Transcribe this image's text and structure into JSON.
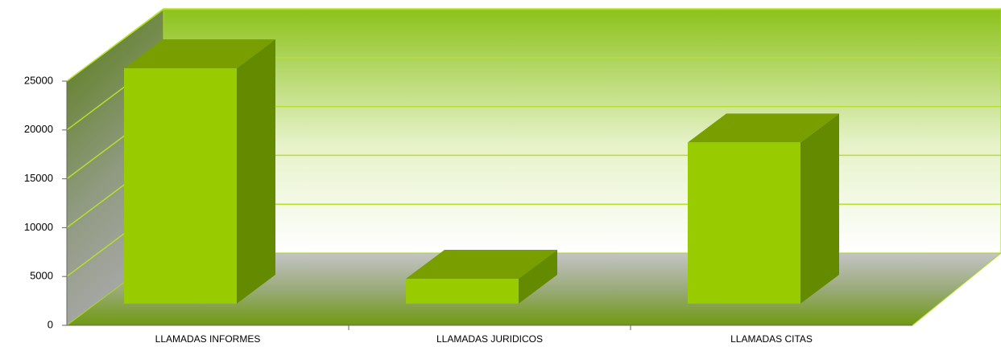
{
  "chart_data": {
    "type": "bar3d",
    "categories": [
      "LLAMADAS INFORMES",
      "LLAMADAS JURIDICOS",
      "LLAMADAS CITAS"
    ],
    "values": [
      24100,
      2550,
      16500
    ],
    "color": "#99cc00",
    "ylim": [
      0,
      25000
    ],
    "yticks": [
      0,
      5000,
      10000,
      15000,
      20000,
      25000
    ],
    "grid": true
  }
}
